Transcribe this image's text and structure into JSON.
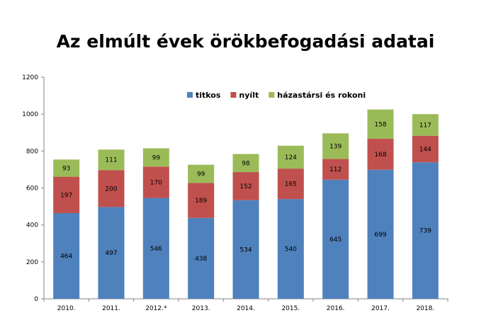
{
  "chart_data": {
    "type": "bar",
    "stacked": true,
    "title": "Az elmúlt évek örökbefogadási adatai",
    "categories": [
      "2010.",
      "2011.",
      "2012.*",
      "2013.",
      "2014.",
      "2015.",
      "2016.",
      "2017.",
      "2018."
    ],
    "series": [
      {
        "name": "titkos",
        "color": "#4f81bd",
        "values": [
          464,
          497,
          546,
          438,
          534,
          540,
          645,
          699,
          739
        ]
      },
      {
        "name": "nyílt",
        "color": "#c0504d",
        "values": [
          197,
          200,
          170,
          189,
          152,
          165,
          112,
          168,
          144
        ]
      },
      {
        "name": "házastársi és rokoni",
        "color": "#9bbb59",
        "values": [
          93,
          111,
          99,
          99,
          98,
          124,
          139,
          158,
          117
        ]
      }
    ],
    "ylim": [
      0,
      1200
    ],
    "yticks": [
      0,
      200,
      400,
      600,
      800,
      1000,
      1200
    ],
    "xlabel": "",
    "ylabel": "",
    "grid": false,
    "legend": "top-center"
  }
}
